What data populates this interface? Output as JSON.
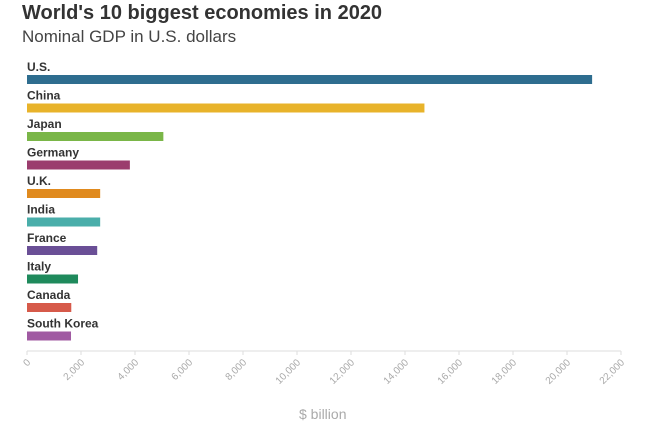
{
  "chart_data": {
    "type": "bar",
    "orientation": "horizontal",
    "title": "World's 10 biggest economies in 2020",
    "subtitle": "Nominal GDP in U.S. dollars",
    "categories": [
      "U.S.",
      "China",
      "Japan",
      "Germany",
      "U.K.",
      "India",
      "France",
      "Italy",
      "Canada",
      "South Korea"
    ],
    "values": [
      20930,
      14720,
      5050,
      3810,
      2710,
      2710,
      2600,
      1890,
      1640,
      1630
    ],
    "colors": [
      "#2e6d8f",
      "#e8b32a",
      "#7ab648",
      "#9b3d6e",
      "#e08a1e",
      "#4aaeaa",
      "#6a4f96",
      "#1f8a5c",
      "#d65a4a",
      "#a05aa2"
    ],
    "xlabel": "$ billion",
    "ylabel": "",
    "xlim": [
      0,
      22000
    ],
    "xticks": [
      "0",
      "2,000",
      "4,000",
      "6,000",
      "8,000",
      "10,000",
      "12,000",
      "14,000",
      "16,000",
      "18,000",
      "20,000",
      "22,000"
    ],
    "grid": false,
    "legend": "none"
  }
}
